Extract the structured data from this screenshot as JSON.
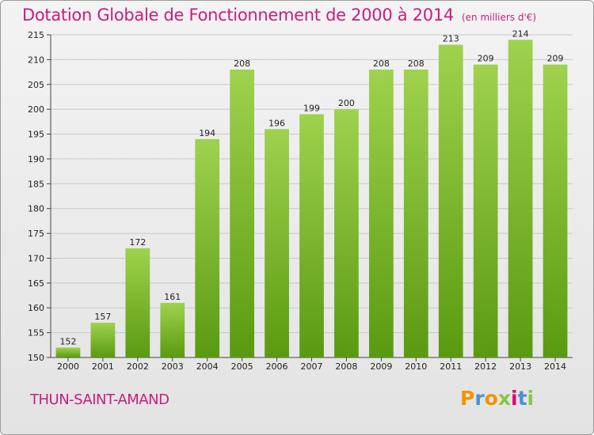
{
  "title": "Dotation Globale de Fonctionnement de 2000 à 2014",
  "subtitle": "(en milliers d'€)",
  "commune": "THUN-SAINT-AMAND",
  "logo": {
    "letters": [
      "P",
      "r",
      "o",
      "x",
      "i",
      "t",
      "i"
    ],
    "colors": [
      "#f29400",
      "#4a90d9",
      "#f29400",
      "#8dc63f",
      "#e2007a",
      "#4a90d9",
      "#8dc63f"
    ]
  },
  "colors": {
    "bar_top": "#9fd24e",
    "bar_bottom": "#5a9a10",
    "title": "#c71e7a",
    "grid": "#c8c8c8"
  },
  "chart_data": {
    "type": "bar",
    "categories": [
      "2000",
      "2001",
      "2002",
      "2003",
      "2004",
      "2005",
      "2006",
      "2007",
      "2008",
      "2009",
      "2010",
      "2011",
      "2012",
      "2013",
      "2014"
    ],
    "values": [
      152,
      157,
      172,
      161,
      194,
      208,
      196,
      199,
      200,
      208,
      208,
      213,
      209,
      214,
      209
    ],
    "ylim": [
      150,
      215
    ],
    "yticks": [
      150,
      155,
      160,
      165,
      170,
      175,
      180,
      185,
      190,
      195,
      200,
      205,
      210,
      215
    ],
    "grid": true,
    "legend": "none"
  }
}
